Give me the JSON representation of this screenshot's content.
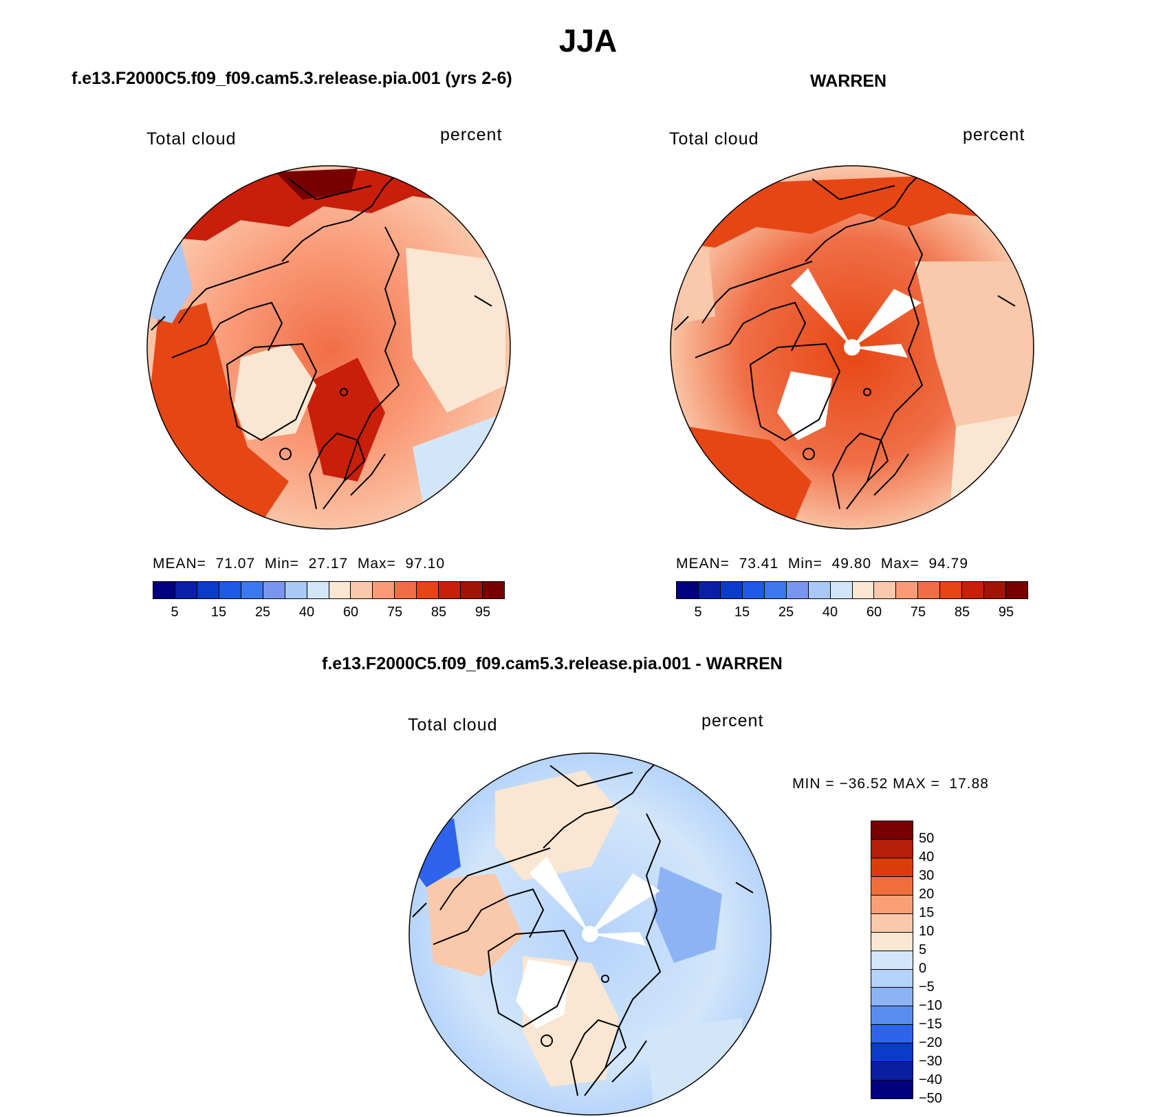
{
  "figure": {
    "title": "JJA",
    "panels": [
      {
        "id": "model",
        "title": "f.e13.F2000C5.f09_f09.cam5.3.release.pia.001 (yrs 2-6)",
        "left_label": "Total cloud",
        "right_label": "percent",
        "stats": {
          "mean_label": "MEAN=",
          "mean": "71.07",
          "min_label": "Min=",
          "min": "27.17",
          "max_label": "Max=",
          "max": "97.10"
        },
        "map": {
          "projection": "north-polar-stereographic",
          "variable": "Total cloud",
          "units": "percent",
          "masked_pole": false
        }
      },
      {
        "id": "obs",
        "title": "WARREN",
        "left_label": "Total cloud",
        "right_label": "percent",
        "stats": {
          "mean_label": "MEAN=",
          "mean": "73.41",
          "min_label": "Min=",
          "min": "49.80",
          "max_label": "Max=",
          "max": "94.79"
        },
        "map": {
          "projection": "north-polar-stereographic",
          "variable": "Total cloud",
          "units": "percent",
          "masked_pole": true
        }
      },
      {
        "id": "diff",
        "title": "f.e13.F2000C5.f09_f09.cam5.3.release.pia.001 - WARREN",
        "left_label": "Total cloud",
        "right_label": "percent",
        "stats": {
          "min_label": "MIN =",
          "min": "−36.52",
          "max_label": "MAX =",
          "max": "17.88"
        },
        "map": {
          "projection": "north-polar-stereographic",
          "variable": "Total cloud difference",
          "units": "percent",
          "masked_pole": true
        }
      }
    ],
    "abs_colorbar": {
      "colors": [
        "#000080",
        "#0a1ea8",
        "#0a3cc8",
        "#1e5ae6",
        "#3c78f0",
        "#7896f0",
        "#aac8f5",
        "#d2e6fa",
        "#fae6d2",
        "#fac8aa",
        "#fa9a78",
        "#f06e46",
        "#e64614",
        "#c81e0a",
        "#a01406",
        "#780000"
      ],
      "tick_labels": [
        "5",
        "15",
        "25",
        "40",
        "60",
        "75",
        "85",
        "95"
      ]
    },
    "diff_colorbar": {
      "colors": [
        "#780000",
        "#b41e0a",
        "#dc3c0a",
        "#f06e3c",
        "#faa078",
        "#fac8aa",
        "#fae6d2",
        "#d2e6fa",
        "#b4d2fa",
        "#8cb4f5",
        "#5a8cf0",
        "#2d64eb",
        "#0a3cc8",
        "#0a1ea0",
        "#000080"
      ],
      "tick_labels": [
        "50",
        "40",
        "30",
        "20",
        "15",
        "10",
        "5",
        "0",
        "−5",
        "−10",
        "−15",
        "−20",
        "−30",
        "−40",
        "−50"
      ]
    }
  }
}
